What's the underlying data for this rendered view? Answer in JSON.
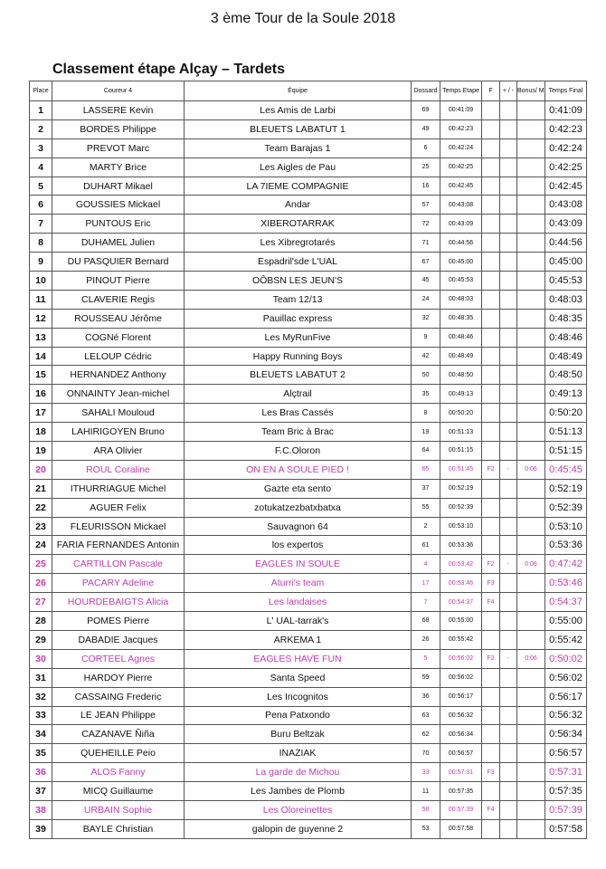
{
  "title": "3 ème Tour de la Soule 2018",
  "subtitle": "Classement étape Alçay – Tardets",
  "colors": {
    "female_highlight": "#c23cb4",
    "text": "#111111"
  },
  "headers": [
    "Place",
    "Coureur 4",
    "Équipe",
    "Dossard",
    "Temps Etape",
    "F",
    "+ / -",
    "Bonus/ Malus",
    "Temps Final"
  ],
  "rows": [
    {
      "place": "1",
      "name": "LASSERE Kevin",
      "team": "Les Amis de Larbi",
      "bib": "69",
      "stage": "00:41:09",
      "f": "",
      "pm": "",
      "bonus": "",
      "final": "0:41:09"
    },
    {
      "place": "2",
      "name": "BORDES Philippe",
      "team": "BLEUETS LABATUT 1",
      "bib": "49",
      "stage": "00:42:23",
      "f": "",
      "pm": "",
      "bonus": "",
      "final": "0:42:23"
    },
    {
      "place": "3",
      "name": "PREVOT Marc",
      "team": "Team Barajas 1",
      "bib": "6",
      "stage": "00:42:24",
      "f": "",
      "pm": "",
      "bonus": "",
      "final": "0:42:24"
    },
    {
      "place": "4",
      "name": "MARTY Brice",
      "team": "Les Aigles de Pau",
      "bib": "25",
      "stage": "00:42:25",
      "f": "",
      "pm": "",
      "bonus": "",
      "final": "0:42:25"
    },
    {
      "place": "5",
      "name": "DUHART Mikael",
      "team": "LA 7IEME COMPAGNIE",
      "bib": "16",
      "stage": "00:42:45",
      "f": "",
      "pm": "",
      "bonus": "",
      "final": "0:42:45"
    },
    {
      "place": "6",
      "name": "GOUSSIES Mickael",
      "team": "Andar",
      "bib": "57",
      "stage": "00:43:08",
      "f": "",
      "pm": "",
      "bonus": "",
      "final": "0:43:08"
    },
    {
      "place": "7",
      "name": "PUNTOUS Eric",
      "team": "XIBEROTARRAK",
      "bib": "72",
      "stage": "00:43:09",
      "f": "",
      "pm": "",
      "bonus": "",
      "final": "0:43:09"
    },
    {
      "place": "8",
      "name": "DUHAMEL Julien",
      "team": "Les Xibregrotarés",
      "bib": "71",
      "stage": "00:44:56",
      "f": "",
      "pm": "",
      "bonus": "",
      "final": "0:44:56"
    },
    {
      "place": "9",
      "name": "DU PASQUIER Bernard",
      "team": "Espadril'sde L'UAL",
      "bib": "67",
      "stage": "00:45:00",
      "f": "",
      "pm": "",
      "bonus": "",
      "final": "0:45:00"
    },
    {
      "place": "10",
      "name": "PINOUT Pierre",
      "team": "OÔBSN LES JEUN'S",
      "bib": "45",
      "stage": "00:45:53",
      "f": "",
      "pm": "",
      "bonus": "",
      "final": "0:45:53"
    },
    {
      "place": "11",
      "name": "CLAVERIE Regis",
      "team": "Team 12/13",
      "bib": "24",
      "stage": "00:48:03",
      "f": "",
      "pm": "",
      "bonus": "",
      "final": "0:48:03"
    },
    {
      "place": "12",
      "name": "ROUSSEAU Jérôme",
      "team": "Pauillac express",
      "bib": "32",
      "stage": "00:48:35",
      "f": "",
      "pm": "",
      "bonus": "",
      "final": "0:48:35"
    },
    {
      "place": "13",
      "name": "COGNé Florent",
      "team": "Les MyRunFive",
      "bib": "9",
      "stage": "00:48:46",
      "f": "",
      "pm": "",
      "bonus": "",
      "final": "0:48:46"
    },
    {
      "place": "14",
      "name": "LELOUP Cédric",
      "team": "Happy Running Boys",
      "bib": "42",
      "stage": "00:48:49",
      "f": "",
      "pm": "",
      "bonus": "",
      "final": "0:48:49"
    },
    {
      "place": "15",
      "name": "HERNANDEZ Anthony",
      "team": "BLEUETS LABATUT 2",
      "bib": "50",
      "stage": "00:48:50",
      "f": "",
      "pm": "",
      "bonus": "",
      "final": "0:48:50"
    },
    {
      "place": "16",
      "name": "ONNAINTY Jean-michel",
      "team": "Alçtrail",
      "bib": "35",
      "stage": "00:49:13",
      "f": "",
      "pm": "",
      "bonus": "",
      "final": "0:49:13"
    },
    {
      "place": "17",
      "name": "SAHALI Mouloud",
      "team": "Les Bras Cassés",
      "bib": "8",
      "stage": "00:50:20",
      "f": "",
      "pm": "",
      "bonus": "",
      "final": "0:50:20"
    },
    {
      "place": "18",
      "name": "LAHIRIGOYEN Bruno",
      "team": "Team Bric à Brac",
      "bib": "19",
      "stage": "00:51:13",
      "f": "",
      "pm": "",
      "bonus": "",
      "final": "0:51:13"
    },
    {
      "place": "19",
      "name": "ARA Olivier",
      "team": "F.C.Oloron",
      "bib": "64",
      "stage": "00:51:15",
      "f": "",
      "pm": "",
      "bonus": "",
      "final": "0:51:15"
    },
    {
      "place": "20",
      "name": "ROUL Coraline",
      "team": "ON EN A SOULE PIED !",
      "bib": "65",
      "stage": "00:51:45",
      "f": "F2",
      "pm": "-",
      "bonus": "0:06",
      "final": "0:45:45",
      "female": true
    },
    {
      "place": "21",
      "name": "ITHURRIAGUE Michel",
      "team": "Gazte eta sento",
      "bib": "37",
      "stage": "00:52:19",
      "f": "",
      "pm": "",
      "bonus": "",
      "final": "0:52:19"
    },
    {
      "place": "22",
      "name": "AGUER Felix",
      "team": "zotukatzezbatxbatxa",
      "bib": "55",
      "stage": "00:52:39",
      "f": "",
      "pm": "",
      "bonus": "",
      "final": "0:52:39"
    },
    {
      "place": "23",
      "name": "FLEURISSON Mickael",
      "team": "Sauvagnon 64",
      "bib": "2",
      "stage": "00:53:10",
      "f": "",
      "pm": "",
      "bonus": "",
      "final": "0:53:10"
    },
    {
      "place": "24",
      "name": "FARIA FERNANDES Antonin",
      "team": "los expertos",
      "bib": "61",
      "stage": "00:53:36",
      "f": "",
      "pm": "",
      "bonus": "",
      "final": "0:53:36"
    },
    {
      "place": "25",
      "name": "CARTILLON Pascale",
      "team": "EAGLES IN SOULE",
      "bib": "4",
      "stage": "00:53:42",
      "f": "F2",
      "pm": "-",
      "bonus": "0:06",
      "final": "0:47:42",
      "female": true
    },
    {
      "place": "26",
      "name": "PACARY Adeline",
      "team": "Aturri's team",
      "bib": "17",
      "stage": "00:53:46",
      "f": "F3",
      "pm": "",
      "bonus": "",
      "final": "0:53:46",
      "female": true
    },
    {
      "place": "27",
      "name": "HOURDEBAIGTS Alicia",
      "team": "Les landaises",
      "bib": "7",
      "stage": "00:54:37",
      "f": "F4",
      "pm": "",
      "bonus": "",
      "final": "0:54:37",
      "female": true
    },
    {
      "place": "28",
      "name": "POMES Pierre",
      "team": "L' UAL-tarrak's",
      "bib": "68",
      "stage": "00:55:00",
      "f": "",
      "pm": "",
      "bonus": "",
      "final": "0:55:00"
    },
    {
      "place": "29",
      "name": "DABADIE Jacques",
      "team": "ARKEMA 1",
      "bib": "26",
      "stage": "00:55:42",
      "f": "",
      "pm": "",
      "bonus": "",
      "final": "0:55:42"
    },
    {
      "place": "30",
      "name": "CORTEEL Agnes",
      "team": "EAGLES HAVE FUN",
      "bib": "5",
      "stage": "00:56:02",
      "f": "F2",
      "pm": "-",
      "bonus": "0:06",
      "final": "0:50:02",
      "female": true
    },
    {
      "place": "31",
      "name": "HARDOY Pierre",
      "team": "Santa Speed",
      "bib": "59",
      "stage": "00:56:02",
      "f": "",
      "pm": "",
      "bonus": "",
      "final": "0:56:02"
    },
    {
      "place": "32",
      "name": "CASSAING Frederic",
      "team": "Les Incognitos",
      "bib": "36",
      "stage": "00:56:17",
      "f": "",
      "pm": "",
      "bonus": "",
      "final": "0:56:17"
    },
    {
      "place": "33",
      "name": "LE JEAN Philippe",
      "team": "Pena Patxondo",
      "bib": "63",
      "stage": "00:56:32",
      "f": "",
      "pm": "",
      "bonus": "",
      "final": "0:56:32"
    },
    {
      "place": "34",
      "name": "CAZANAVE Ñiña",
      "team": "Buru Beltzak",
      "bib": "62",
      "stage": "00:56:34",
      "f": "",
      "pm": "",
      "bonus": "",
      "final": "0:56:34"
    },
    {
      "place": "35",
      "name": "QUEHEILLE Peio",
      "team": "INAZIAK",
      "bib": "70",
      "stage": "00:56:57",
      "f": "",
      "pm": "",
      "bonus": "",
      "final": "0:56:57"
    },
    {
      "place": "36",
      "name": "ALOS Fanny",
      "team": "La garde de Michou",
      "bib": "33",
      "stage": "00:57:31",
      "f": "F3",
      "pm": "",
      "bonus": "",
      "final": "0:57:31",
      "female": true
    },
    {
      "place": "37",
      "name": "MICQ Guillaume",
      "team": "Les Jambes de Plomb",
      "bib": "11",
      "stage": "00:57:35",
      "f": "",
      "pm": "",
      "bonus": "",
      "final": "0:57:35"
    },
    {
      "place": "38",
      "name": "URBAIN Sophie",
      "team": "Les Oloreinettes",
      "bib": "58",
      "stage": "00:57:39",
      "f": "F4",
      "pm": "",
      "bonus": "",
      "final": "0:57:39",
      "female": true
    },
    {
      "place": "39",
      "name": "BAYLE Christian",
      "team": "galopin de guyenne 2",
      "bib": "53",
      "stage": "00:57:58",
      "f": "",
      "pm": "",
      "bonus": "",
      "final": "0:57:58"
    }
  ]
}
